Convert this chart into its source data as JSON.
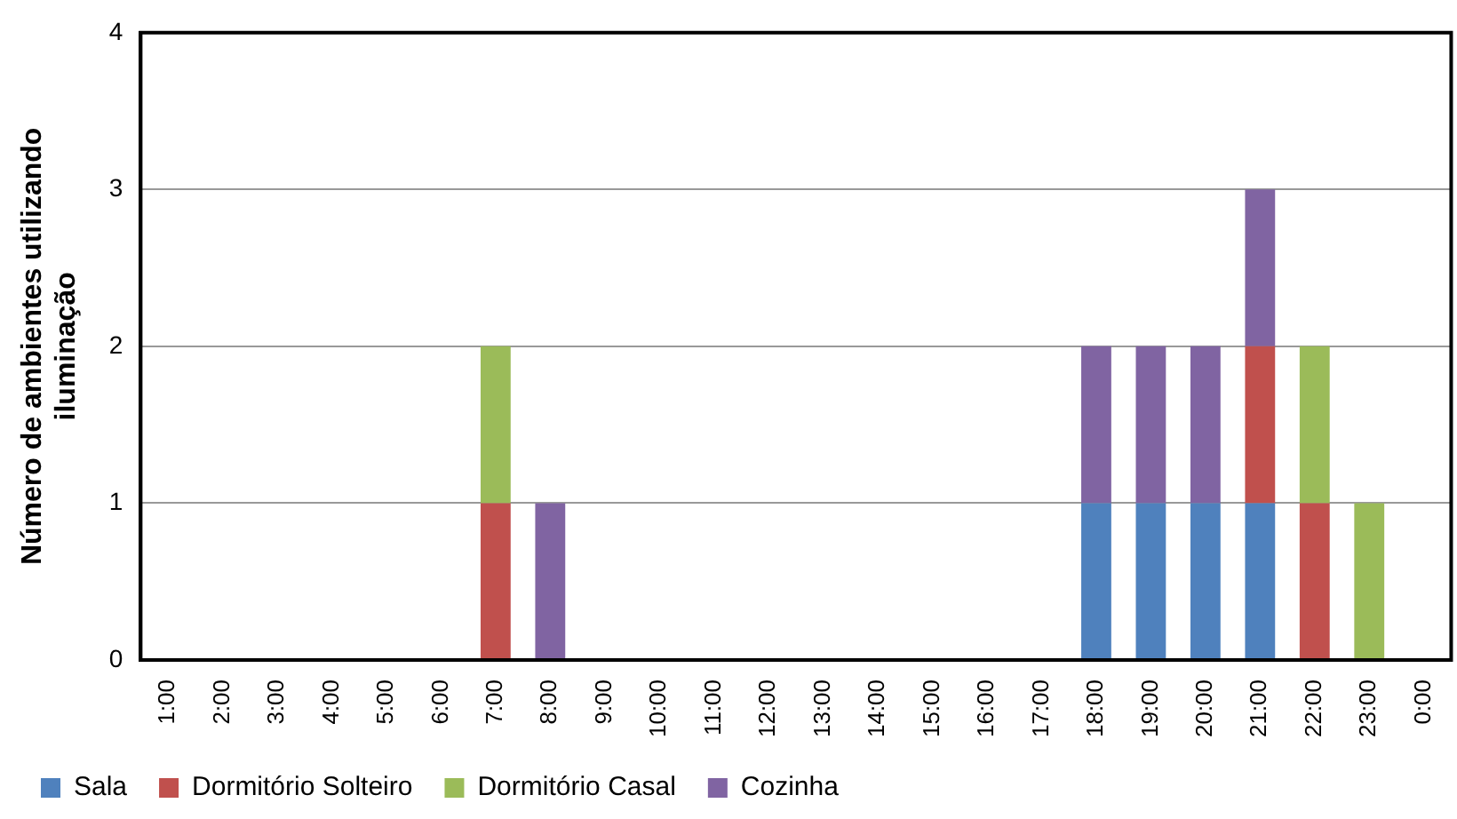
{
  "chart_data": {
    "type": "bar",
    "stacked": true,
    "ylabel": "Número de ambientes utilizando iluminação",
    "categories": [
      "1:00",
      "2:00",
      "3:00",
      "4:00",
      "5:00",
      "6:00",
      "7:00",
      "8:00",
      "9:00",
      "10:00",
      "11:00",
      "12:00",
      "13:00",
      "14:00",
      "15:00",
      "16:00",
      "17:00",
      "18:00",
      "19:00",
      "20:00",
      "21:00",
      "22:00",
      "23:00",
      "0:00"
    ],
    "series": [
      {
        "name": "Sala",
        "color": "#4f81bd",
        "values": [
          0,
          0,
          0,
          0,
          0,
          0,
          0,
          0,
          0,
          0,
          0,
          0,
          0,
          0,
          0,
          0,
          0,
          1,
          1,
          1,
          1,
          0,
          0,
          0
        ]
      },
      {
        "name": "Dormitório Solteiro",
        "color": "#c0504d",
        "values": [
          0,
          0,
          0,
          0,
          0,
          0,
          1,
          0,
          0,
          0,
          0,
          0,
          0,
          0,
          0,
          0,
          0,
          0,
          0,
          0,
          1,
          1,
          0,
          0
        ]
      },
      {
        "name": "Dormitório Casal",
        "color": "#9bbb59",
        "values": [
          0,
          0,
          0,
          0,
          0,
          0,
          1,
          0,
          0,
          0,
          0,
          0,
          0,
          0,
          0,
          0,
          0,
          0,
          0,
          0,
          0,
          1,
          1,
          0
        ]
      },
      {
        "name": "Cozinha",
        "color": "#8064a2",
        "values": [
          0,
          0,
          0,
          0,
          0,
          0,
          0,
          1,
          0,
          0,
          0,
          0,
          0,
          0,
          0,
          0,
          0,
          1,
          1,
          1,
          1,
          0,
          0,
          0
        ]
      }
    ],
    "ylim": [
      0,
      4
    ],
    "yticks": [
      0,
      1,
      2,
      3,
      4
    ],
    "grid": "y",
    "legend": "bottom"
  }
}
